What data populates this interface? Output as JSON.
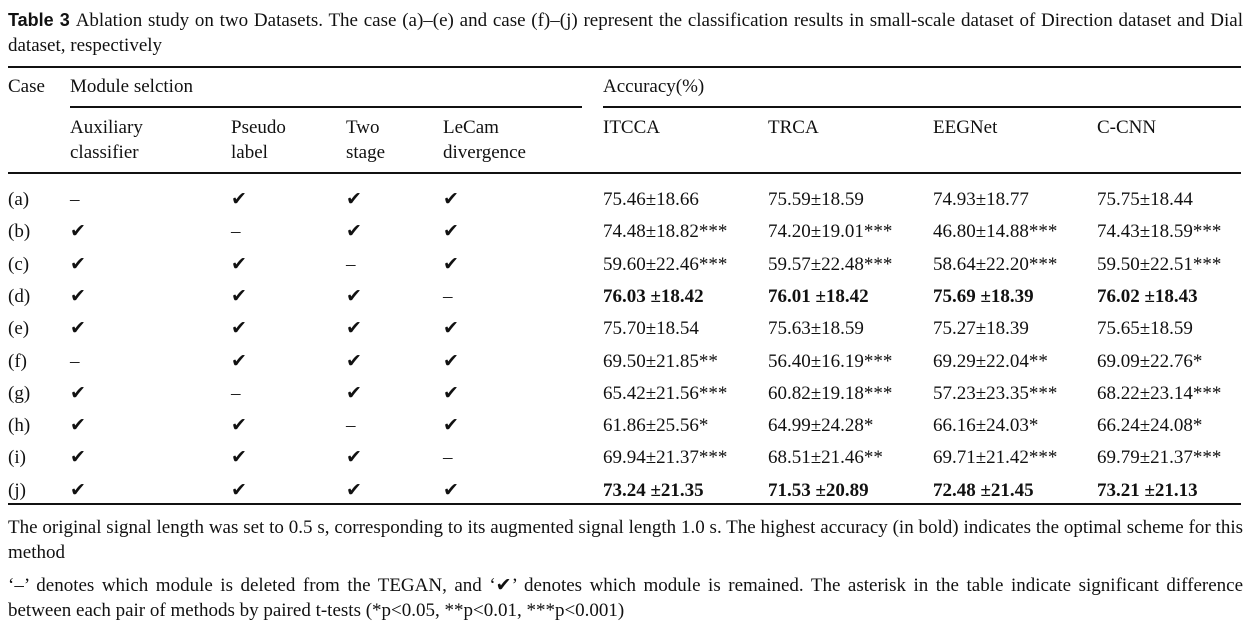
{
  "caption": {
    "label": "Table 3",
    "text": "Ablation study on two Datasets. The case (a)–(e) and case (f)–(j) represent the classification results in small-scale dataset of Direction dataset and Dial dataset, respectively"
  },
  "table": {
    "group_headers": [
      "Case",
      "Module selction",
      "Accuracy(%)"
    ],
    "sub_headers": [
      "Auxiliary classifier",
      "Pseudo label",
      "Two stage",
      "LeCam divergence",
      "ITCCA",
      "TRCA",
      "EEGNet",
      "C-CNN"
    ],
    "rows": [
      [
        "(a)",
        "–",
        "✔",
        "✔",
        "✔",
        "75.46±18.66",
        "75.59±18.59",
        "74.93±18.77",
        "75.75±18.44"
      ],
      [
        "(b)",
        "✔",
        "–",
        "✔",
        "✔",
        "74.48±18.82***",
        "74.20±19.01***",
        "46.80±14.88***",
        "74.43±18.59***"
      ],
      [
        "(c)",
        "✔",
        "✔",
        "–",
        "✔",
        "59.60±22.46***",
        "59.57±22.48***",
        "58.64±22.20***",
        "59.50±22.51***"
      ],
      [
        "(d)",
        "✔",
        "✔",
        "✔",
        "–",
        "76.03 ±18.42",
        "76.01 ±18.42",
        "75.69 ±18.39",
        "76.02 ±18.43"
      ],
      [
        "(e)",
        "✔",
        "✔",
        "✔",
        "✔",
        "75.70±18.54",
        "75.63±18.59",
        "75.27±18.39",
        "75.65±18.59"
      ],
      [
        "(f)",
        "–",
        "✔",
        "✔",
        "✔",
        "69.50±21.85**",
        "56.40±16.19***",
        "69.29±22.04**",
        "69.09±22.76*"
      ],
      [
        "(g)",
        "✔",
        "–",
        "✔",
        "✔",
        "65.42±21.56***",
        "60.82±19.18***",
        "57.23±23.35***",
        "68.22±23.14***"
      ],
      [
        "(h)",
        "✔",
        "✔",
        "–",
        "✔",
        "61.86±25.56*",
        "64.99±24.28*",
        "66.16±24.03*",
        "66.24±24.08*"
      ],
      [
        "(i)",
        "✔",
        "✔",
        "✔",
        "–",
        "69.94±21.37***",
        "68.51±21.46**",
        "69.71±21.42***",
        "69.79±21.37***"
      ],
      [
        "(j)",
        "✔",
        "✔",
        "✔",
        "✔",
        "73.24 ±21.35",
        "71.53 ±20.89",
        "72.48 ±21.45",
        "73.21 ±21.13"
      ]
    ]
  },
  "notes": [
    "The original signal length was set to 0.5 s, corresponding to its augmented signal length 1.0 s. The highest accuracy (in bold) indicates the optimal scheme for this method",
    "‘–’ denotes which module is deleted from the TEGAN, and ‘✔’ denotes which module is remained. The asterisk in the table indicate significant difference between each pair of methods by paired t-tests (*p<0.05, **p<0.01, ***p<0.001)"
  ]
}
